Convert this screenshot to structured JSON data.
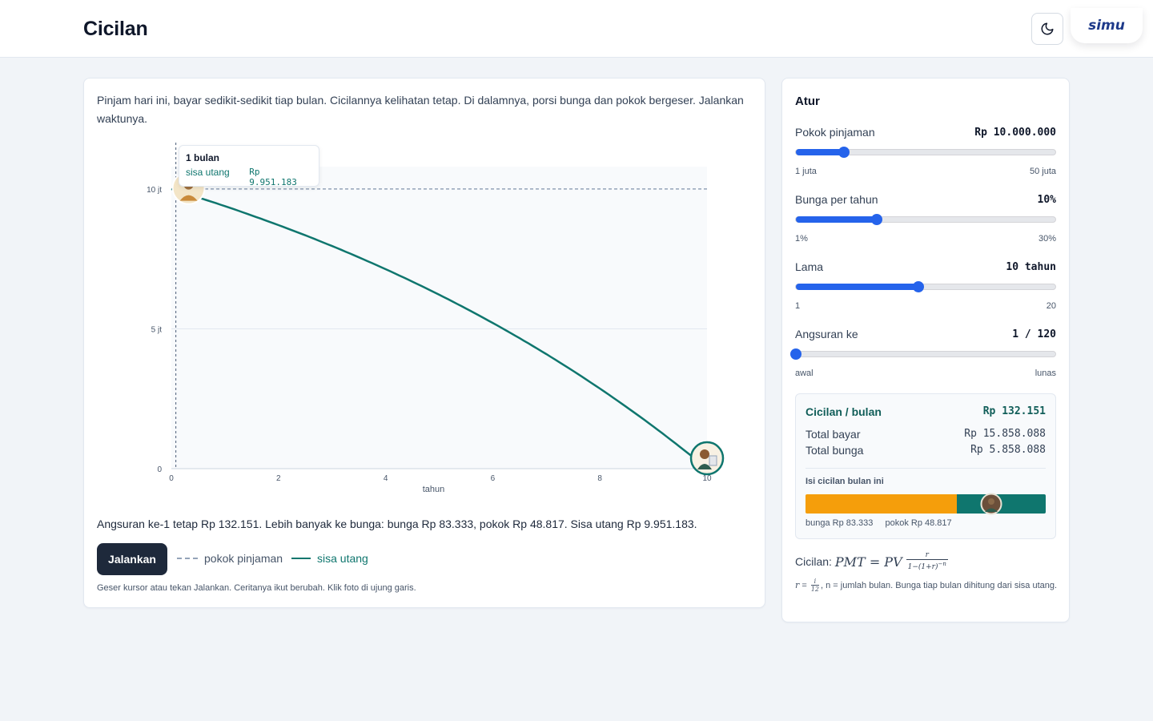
{
  "header": {
    "title": "Cicilan",
    "logo": "simu",
    "theme_icon": "moon-icon"
  },
  "main": {
    "intro": "Pinjam hari ini, bayar sedikit-sedikit tiap bulan. Cicilannya kelihatan tetap. Di dalamnya, porsi bunga dan pokok bergeser. Jalankan waktunya.",
    "tooltip": {
      "title": "1 bulan",
      "label": "sisa utang",
      "value": "Rp 9.951.183"
    },
    "summary": "Angsuran ke-1 tetap Rp 132.151. Lebih banyak ke bunga: bunga Rp 83.333, pokok Rp 48.817. Sisa utang Rp 9.951.183.",
    "run_label": "Jalankan",
    "legend": {
      "principal": "pokok pinjaman",
      "balance": "sisa utang"
    },
    "hint": "Geser kursor atau tekan Jalankan. Ceritanya ikut berubah. Klik foto di ujung garis."
  },
  "chart_data": {
    "type": "line",
    "xlabel": "tahun",
    "ylabel": "",
    "xlim": [
      0,
      10
    ],
    "ylim": [
      0,
      10.8
    ],
    "x_ticks": [
      "0",
      "2",
      "4",
      "6",
      "8",
      "10"
    ],
    "y_ticks": [
      "0",
      "5 jt",
      "10 jt"
    ],
    "principal_jt": 10,
    "monthly_rate": 0.008333,
    "months": 120,
    "payment": 132151,
    "cursor_month": 1,
    "series": [
      {
        "name": "sisa utang",
        "color": "#0f766e"
      },
      {
        "name": "pokok pinjaman",
        "color": "#94a3b8",
        "dashed": true
      }
    ]
  },
  "side": {
    "title": "Atur",
    "controls": [
      {
        "label": "Pokok pinjaman",
        "value": "Rp 10.000.000",
        "min": "1 juta",
        "max": "50 juta",
        "fraction": 0.1837
      },
      {
        "label": "Bunga per tahun",
        "value": "10%",
        "min": "1%",
        "max": "30%",
        "fraction": 0.3103
      },
      {
        "label": "Lama",
        "value": "10 tahun",
        "min": "1",
        "max": "20",
        "fraction": 0.4737
      },
      {
        "label": "Angsuran ke",
        "value": "1 / 120",
        "min": "awal",
        "max": "lunas",
        "fraction": 0.0
      }
    ],
    "result": {
      "monthly_label": "Cicilan / bulan",
      "monthly_value": "Rp 132.151",
      "total_label": "Total bayar",
      "total_value": "Rp 15.858.088",
      "interest_label": "Total bunga",
      "interest_value": "Rp 5.858.088",
      "split_title": "Isi cicilan bulan ini",
      "split_bunga": "bunga Rp 83.333",
      "split_pokok": "pokok Rp 48.817",
      "bunga_fraction": 0.6306
    },
    "formula_label": "Cicilan:",
    "formula_note": ", n = jumlah bulan. Bunga tiap bulan dihitung dari sisa utang."
  },
  "colors": {
    "accent": "#2563eb",
    "balance": "#0f766e",
    "interest": "#f59e0b",
    "dark_button": "#1e293b"
  }
}
